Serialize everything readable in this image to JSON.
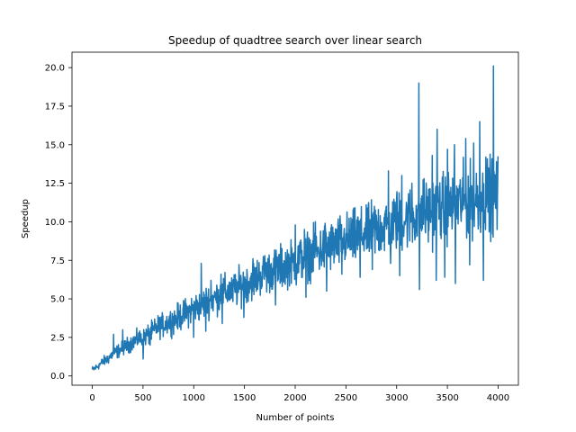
{
  "chart_data": {
    "type": "line",
    "title": "Speedup of quadtree search over linear search",
    "xlabel": "Number of points",
    "ylabel": "Speedup",
    "xlim": [
      -200,
      4200
    ],
    "ylim": [
      -0.6,
      21.0
    ],
    "x_ticks": [
      0,
      500,
      1000,
      1500,
      2000,
      2500,
      3000,
      3500,
      4000
    ],
    "y_ticks": [
      0.0,
      2.5,
      5.0,
      7.5,
      10.0,
      12.5,
      15.0,
      17.5,
      20.0
    ],
    "x_tick_labels": [
      "0",
      "500",
      "1000",
      "1500",
      "2000",
      "2500",
      "3000",
      "3500",
      "4000"
    ],
    "y_tick_labels": [
      "0.0",
      "2.5",
      "5.0",
      "7.5",
      "10.0",
      "12.5",
      "15.0",
      "17.5",
      "20.0"
    ],
    "grid": false,
    "series": [
      {
        "color": "#1f77b4",
        "x": [
          0,
          50,
          100,
          150,
          200,
          250,
          300,
          350,
          400,
          450,
          500,
          550,
          600,
          650,
          700,
          750,
          800,
          850,
          900,
          950,
          1000,
          1050,
          1100,
          1150,
          1200,
          1250,
          1300,
          1350,
          1400,
          1450,
          1500,
          1550,
          1600,
          1650,
          1700,
          1750,
          1800,
          1850,
          1900,
          1950,
          2000,
          2050,
          2100,
          2150,
          2200,
          2250,
          2300,
          2350,
          2400,
          2450,
          2500,
          2550,
          2600,
          2650,
          2700,
          2750,
          2800,
          2850,
          2900,
          2950,
          3000,
          3050,
          3100,
          3150,
          3200,
          3250,
          3300,
          3350,
          3400,
          3450,
          3500,
          3550,
          3600,
          3650,
          3700,
          3750,
          3800,
          3850,
          3900,
          3950,
          3970,
          4000
        ],
        "y": [
          0.4,
          0.6,
          0.9,
          1.1,
          1.4,
          1.6,
          1.8,
          2.0,
          2.2,
          2.4,
          2.4,
          2.7,
          2.9,
          3.2,
          3.3,
          3.5,
          3.6,
          3.8,
          4.0,
          4.2,
          4.4,
          4.5,
          4.7,
          4.9,
          5.0,
          5.2,
          5.4,
          5.5,
          5.6,
          5.8,
          6.0,
          6.1,
          6.3,
          6.5,
          6.6,
          6.8,
          6.9,
          7.0,
          7.2,
          7.3,
          7.4,
          7.6,
          7.7,
          7.9,
          8.0,
          8.1,
          8.3,
          8.4,
          8.5,
          8.7,
          8.8,
          8.9,
          9.0,
          9.1,
          9.3,
          9.4,
          9.5,
          9.6,
          9.8,
          9.9,
          10.0,
          10.1,
          10.2,
          10.3,
          10.4,
          10.5,
          10.6,
          10.7,
          10.8,
          10.9,
          11.0,
          11.1,
          11.2,
          11.3,
          11.3,
          11.4,
          11.5,
          11.6,
          11.7,
          11.8,
          11.8,
          11.9
        ],
        "spread": [
          0.3,
          0.3,
          0.4,
          0.5,
          0.5,
          0.6,
          0.6,
          0.7,
          0.7,
          0.8,
          0.8,
          0.9,
          0.9,
          1.0,
          1.0,
          1.1,
          1.1,
          1.2,
          1.2,
          1.3,
          1.3,
          1.3,
          1.4,
          1.4,
          1.4,
          1.5,
          1.5,
          1.5,
          1.6,
          1.6,
          1.6,
          1.7,
          1.7,
          1.7,
          1.8,
          1.8,
          1.8,
          1.9,
          1.9,
          1.9,
          2.0,
          2.0,
          2.0,
          2.1,
          2.1,
          2.1,
          2.2,
          2.2,
          2.2,
          2.3,
          2.3,
          2.3,
          2.4,
          2.4,
          2.4,
          2.5,
          2.5,
          2.5,
          2.6,
          2.6,
          2.6,
          2.7,
          2.7,
          2.7,
          2.8,
          2.8,
          2.8,
          2.9,
          2.9,
          2.9,
          3.0,
          3.0,
          3.0,
          3.1,
          3.1,
          3.1,
          3.2,
          3.2,
          3.2,
          3.3,
          3.3,
          3.3
        ],
        "peaks": [
          [
            210,
            2.7
          ],
          [
            300,
            3.0
          ],
          [
            460,
            2.8
          ],
          [
            1075,
            7.3
          ],
          [
            1170,
            6.2
          ],
          [
            1270,
            6.6
          ],
          [
            1380,
            6.0
          ],
          [
            1585,
            7.6
          ],
          [
            1700,
            7.8
          ],
          [
            2000,
            9.8
          ],
          [
            2090,
            9.5
          ],
          [
            2200,
            10.0
          ],
          [
            2295,
            9.9
          ],
          [
            2620,
            10.3
          ],
          [
            2700,
            11.1
          ],
          [
            2780,
            11.0
          ],
          [
            2920,
            13.3
          ],
          [
            3000,
            11.6
          ],
          [
            3050,
            13.0
          ],
          [
            3150,
            12.5
          ],
          [
            3220,
            19.0
          ],
          [
            3270,
            12.8
          ],
          [
            3350,
            14.3
          ],
          [
            3400,
            16.0
          ],
          [
            3500,
            14.7
          ],
          [
            3570,
            15.0
          ],
          [
            3680,
            15.4
          ],
          [
            3760,
            15.1
          ],
          [
            3820,
            16.5
          ],
          [
            3880,
            14.2
          ],
          [
            3955,
            20.1
          ],
          [
            3990,
            15.0
          ]
        ],
        "dips": [
          [
            500,
            1.1
          ],
          [
            570,
            2.0
          ],
          [
            1000,
            2.5
          ],
          [
            1120,
            2.9
          ],
          [
            1280,
            3.4
          ],
          [
            1495,
            3.8
          ],
          [
            1805,
            4.6
          ],
          [
            2010,
            5.9
          ],
          [
            2105,
            5.1
          ],
          [
            2310,
            5.5
          ],
          [
            2460,
            6.6
          ],
          [
            2640,
            6.4
          ],
          [
            2760,
            6.9
          ],
          [
            2940,
            7.3
          ],
          [
            3030,
            6.5
          ],
          [
            3225,
            5.6
          ],
          [
            3390,
            6.2
          ],
          [
            3475,
            6.4
          ],
          [
            3580,
            6.0
          ],
          [
            3720,
            7.2
          ],
          [
            3855,
            6.2
          ],
          [
            3950,
            9.0
          ],
          [
            3990,
            9.5
          ]
        ]
      }
    ]
  }
}
